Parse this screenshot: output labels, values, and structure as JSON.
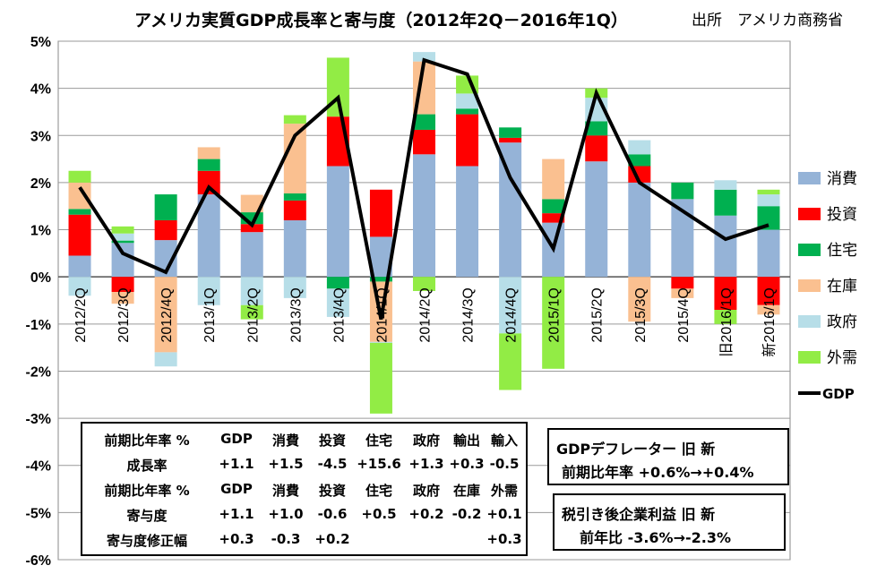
{
  "title": "アメリカ実質GDP成長率と寄与度（2012年2Q－2016年1Q）",
  "source": "出所　アメリカ商務省",
  "chart_data": {
    "type": "bar",
    "stacked": true,
    "categories": [
      "2012/2Q",
      "2012/3Q",
      "2012/4Q",
      "2013/1Q",
      "2013/2Q",
      "2013/3Q",
      "2013/4Q",
      "2014/1Q",
      "2014/2Q",
      "2014/3Q",
      "2014/4Q",
      "2015/1Q",
      "2015/2Q",
      "2015/3Q",
      "2015/4Q",
      "旧2016/1Q",
      "新2016/1Q"
    ],
    "ylim": [
      -6,
      5
    ],
    "yticks": [
      "-6%",
      "-5%",
      "-4%",
      "-3%",
      "-2%",
      "-1%",
      "0%",
      "1%",
      "2%",
      "3%",
      "4%",
      "5%"
    ],
    "grid": true,
    "legend_position": "right",
    "series": [
      {
        "name": "消費",
        "color": "#95b3d7",
        "values": [
          0.45,
          0.72,
          0.78,
          1.75,
          0.95,
          1.2,
          2.35,
          0.85,
          2.6,
          2.35,
          2.85,
          1.15,
          2.45,
          2.0,
          1.65,
          1.3,
          1.0
        ]
      },
      {
        "name": "投資",
        "color": "#ff0000",
        "values": [
          0.87,
          -0.32,
          0.42,
          0.5,
          0.17,
          0.42,
          1.05,
          1.0,
          0.52,
          1.1,
          0.1,
          0.2,
          0.55,
          0.35,
          -0.25,
          -0.7,
          -0.6
        ]
      },
      {
        "name": "住宅",
        "color": "#00b050",
        "values": [
          0.12,
          0.05,
          0.55,
          0.25,
          0.25,
          0.15,
          -0.25,
          -0.1,
          0.33,
          0.12,
          0.22,
          0.3,
          0.3,
          0.25,
          0.35,
          0.55,
          0.5
        ]
      },
      {
        "name": "在庫",
        "color": "#fac090",
        "values": [
          0.56,
          -0.25,
          -1.6,
          0.25,
          0.37,
          1.48,
          0.0,
          -1.28,
          1.12,
          0.0,
          0.0,
          0.85,
          0.0,
          -0.95,
          -0.2,
          0.0,
          -0.2
        ]
      },
      {
        "name": "政府",
        "color": "#b7dee8",
        "values": [
          -0.4,
          0.15,
          -0.3,
          -0.6,
          -0.6,
          -0.45,
          -0.6,
          -0.02,
          0.2,
          0.32,
          -1.2,
          0.0,
          0.5,
          0.3,
          0.0,
          0.2,
          0.25
        ]
      },
      {
        "name": "外需",
        "color": "#92ec45",
        "values": [
          0.25,
          0.15,
          0.0,
          0.0,
          -0.3,
          0.18,
          1.25,
          -1.5,
          -0.3,
          0.38,
          -1.2,
          -1.95,
          0.2,
          0.0,
          0.0,
          -0.3,
          0.1
        ]
      }
    ],
    "line": {
      "name": "GDP",
      "color": "#000000",
      "values": [
        1.9,
        0.5,
        0.1,
        1.9,
        1.1,
        3.0,
        3.8,
        -0.9,
        4.6,
        4.3,
        2.1,
        0.6,
        3.9,
        2.0,
        1.4,
        0.8,
        1.1
      ]
    }
  },
  "table": {
    "rows": [
      [
        "前期比年率 %",
        "GDP",
        "消費",
        "投資",
        "住宅",
        "政府",
        "輸出",
        "輸入"
      ],
      [
        "成長率",
        "+1.1",
        "+1.5",
        "-4.5",
        "+15.6",
        "+1.3",
        "+0.3",
        "-0.5"
      ],
      [
        "前期比年率 %",
        "GDP",
        "消費",
        "投資",
        "住宅",
        "政府",
        "在庫",
        "外需"
      ],
      [
        "寄与度",
        "+1.1",
        "+1.0",
        "-0.6",
        "+0.5",
        "+0.2",
        "-0.2",
        "+0.1"
      ],
      [
        "寄与度修正幅",
        "+0.3",
        "-0.3",
        "+0.2",
        "",
        "",
        "",
        "+0.3"
      ]
    ]
  },
  "deflator": {
    "line1": "GDPデフレーター 旧 新",
    "line2": "前期比年率 +0.6%→+0.4%"
  },
  "profit": {
    "line1": "税引き後企業利益 旧 新",
    "line2": "前年比 -3.6%→-2.3%"
  }
}
